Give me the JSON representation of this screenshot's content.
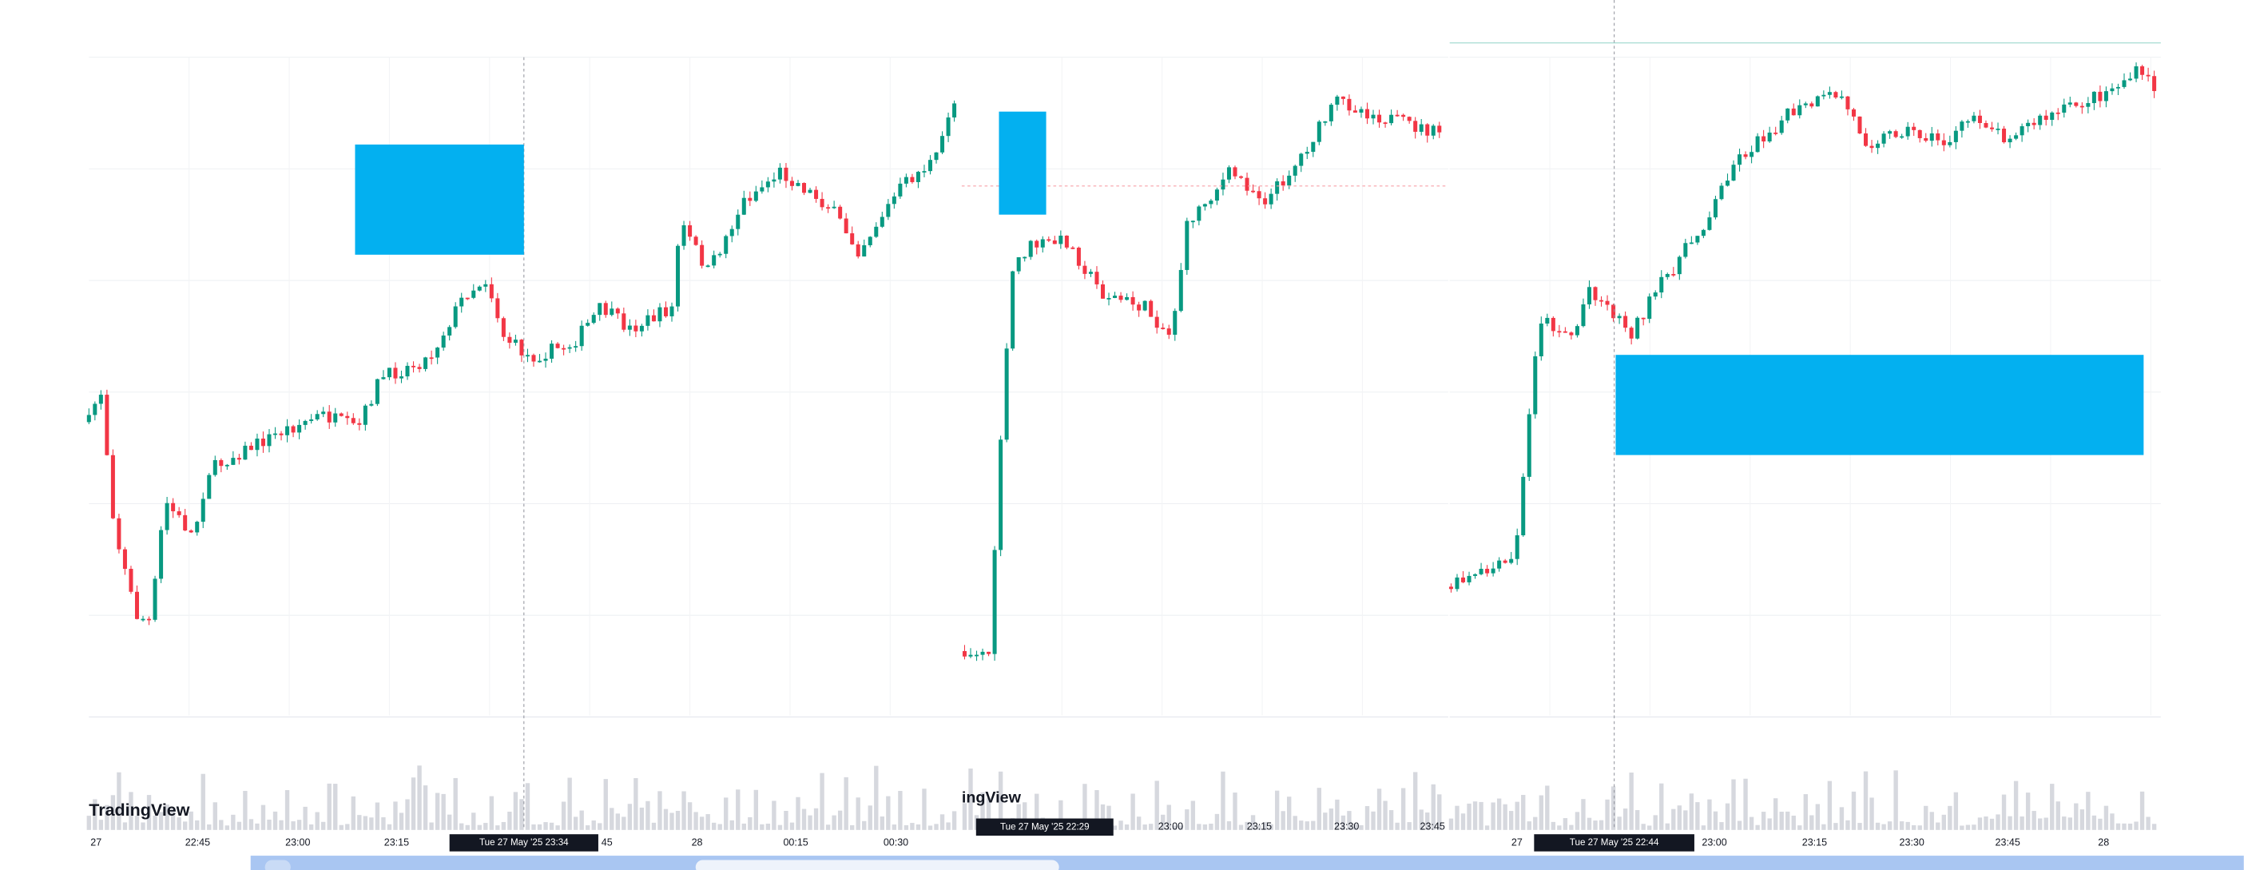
{
  "panels": [
    {
      "logo": "TradingView",
      "crosshair_label": "Tue 27 May '25 23:34",
      "time_labels": [
        "27",
        "22:45",
        "23:00",
        "23:15",
        "45",
        "28",
        "00:15",
        "00:30"
      ]
    },
    {
      "logo": "ingView",
      "crosshair_label": "Tue 27 May '25 22:29",
      "time_labels": [
        "23:00",
        "23:15",
        "23:30",
        "23:45"
      ]
    },
    {
      "crosshair_label": "Tue 27 May '25 22:44",
      "time_labels": [
        "27",
        "23:00",
        "23:15",
        "23:30",
        "23:45",
        "28"
      ]
    }
  ]
}
